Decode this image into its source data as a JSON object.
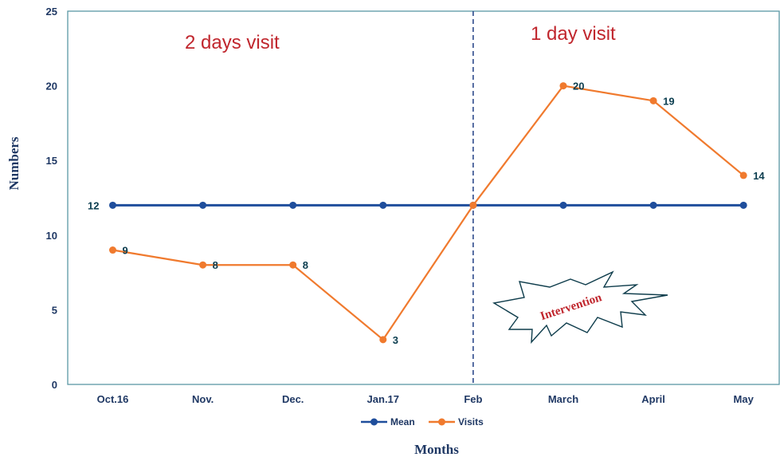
{
  "chart_data": {
    "type": "line",
    "categories": [
      "Oct.16",
      "Nov.",
      "Dec.",
      "Jan.17",
      "Feb",
      "March",
      "April",
      "May"
    ],
    "series": [
      {
        "name": "Mean",
        "values": [
          12,
          12,
          12,
          12,
          12,
          12,
          12,
          12
        ],
        "color": "#1f4e9c",
        "labels": [
          12,
          null,
          null,
          null,
          null,
          null,
          null,
          null
        ]
      },
      {
        "name": "Visits",
        "values": [
          9,
          8,
          8,
          3,
          12,
          20,
          19,
          14
        ],
        "color": "#f07a2e",
        "labels": [
          9,
          8,
          8,
          3,
          null,
          20,
          19,
          14
        ]
      }
    ],
    "xlabel": "Months",
    "ylabel": "Numbers",
    "ylim": [
      0,
      25
    ],
    "yticks": [
      0,
      5,
      10,
      15,
      20,
      25
    ],
    "grid": false,
    "legend": "bottom-center",
    "annotations": {
      "left_phase": "2 days visit",
      "right_phase": "1 day visit",
      "intervention": "Intervention"
    },
    "divider_at": "Feb"
  }
}
